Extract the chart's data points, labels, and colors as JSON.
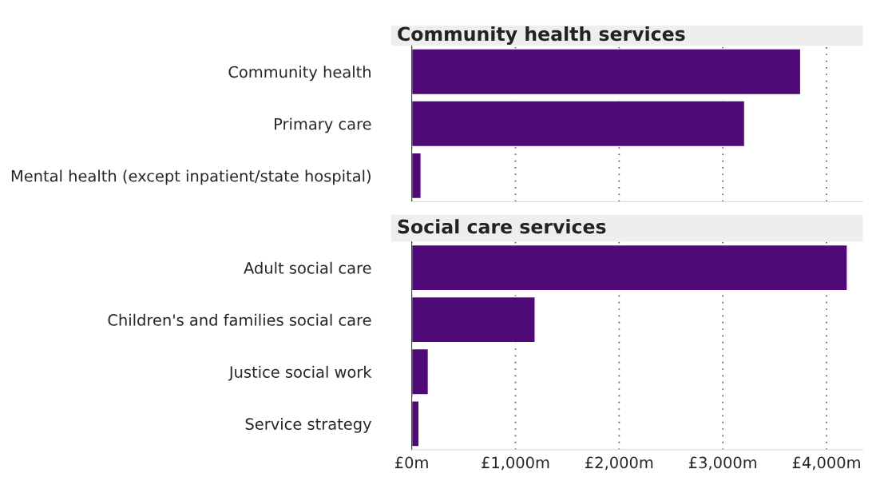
{
  "chart_data": [
    {
      "type": "bar",
      "orientation": "horizontal",
      "title": "Community health services",
      "categories": [
        "Community health",
        "Primary care",
        "Mental health (except inpatient/state hospital)"
      ],
      "values": [
        3750,
        3210,
        90
      ],
      "color": "#4f0a78",
      "xlim": [
        0,
        4350
      ],
      "xticks": [
        {
          "value": 0,
          "label": null
        },
        {
          "value": 1000,
          "label": null
        },
        {
          "value": 2000,
          "label": null
        },
        {
          "value": 3000,
          "label": null
        },
        {
          "value": 4000,
          "label": null
        }
      ],
      "grid": "x",
      "tick_labels": "y"
    },
    {
      "type": "bar",
      "orientation": "horizontal",
      "title": "Social care services",
      "categories": [
        "Adult social care",
        "Children's and families social care",
        "Justice social work",
        "Service strategy"
      ],
      "values": [
        4200,
        1190,
        160,
        70
      ],
      "color": "#4f0a78",
      "xlim": [
        0,
        4350
      ],
      "xticks": [
        {
          "value": 0,
          "label": "£0m"
        },
        {
          "value": 1000,
          "label": "£1,000m"
        },
        {
          "value": 2000,
          "label": "£2,000m"
        },
        {
          "value": 3000,
          "label": "£3,000m"
        },
        {
          "value": 4000,
          "label": "£4,000m"
        }
      ],
      "grid": "x"
    }
  ]
}
